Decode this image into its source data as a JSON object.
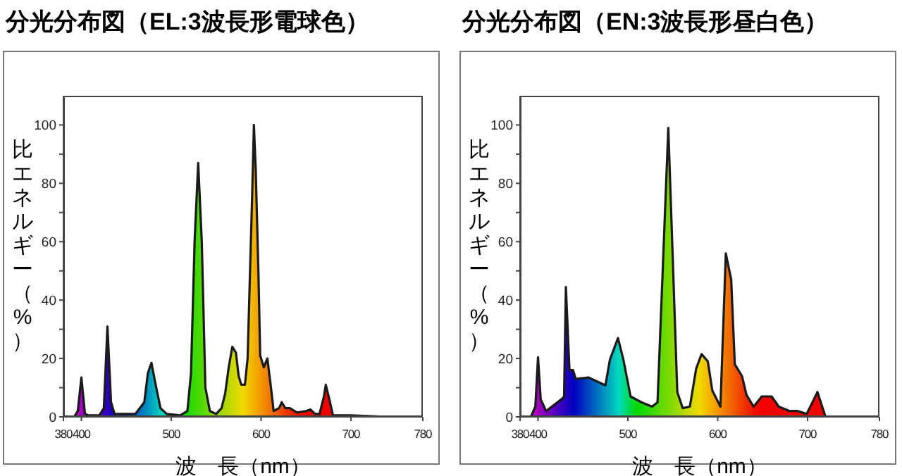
{
  "chart_data": [
    {
      "type": "area",
      "title": "分光分布図（EL:3波長形電球色）",
      "xlabel": "波　長（nm）",
      "ylabel": "比エネルギー（%）",
      "xlim": [
        380,
        780
      ],
      "xticks": [
        380,
        400,
        500,
        600,
        700,
        780
      ],
      "ylim": [
        0,
        110
      ],
      "yticks": [
        0,
        {
          "value": 10,
          "label": null
        },
        20,
        {
          "value": 30,
          "label": null
        },
        40,
        {
          "value": 50,
          "label": null
        },
        60,
        {
          "value": 70,
          "label": null
        },
        80,
        {
          "value": 90,
          "label": null
        },
        100
      ],
      "series": [
        {
          "color": "#1a1a1a",
          "x": [
            380,
            392,
            396,
            400,
            404,
            408,
            420,
            425,
            429,
            433,
            437,
            445,
            460,
            470,
            474,
            478,
            482,
            488,
            495,
            510,
            518,
            522,
            526,
            530,
            534,
            538,
            543,
            550,
            556,
            560,
            564,
            568,
            572,
            575,
            578,
            582,
            585,
            590,
            592,
            594,
            597,
            599,
            603,
            607,
            611,
            614,
            620,
            623,
            627,
            632,
            640,
            650,
            655,
            660,
            665,
            670,
            672,
            676,
            680,
            700,
            720,
            740,
            780
          ],
          "values": [
            0,
            0,
            2,
            13.5,
            1,
            0.5,
            0.5,
            3,
            31,
            5,
            1,
            1,
            1,
            5,
            15,
            18.5,
            12,
            3,
            1,
            0.5,
            2,
            15,
            60,
            87,
            60,
            10,
            2,
            1,
            3,
            8,
            17,
            24,
            22,
            14,
            11,
            11,
            20,
            75,
            100,
            85,
            50,
            21,
            17,
            20,
            10,
            2,
            3,
            5,
            3,
            3,
            1.5,
            2,
            2.5,
            1,
            1,
            7,
            11,
            6,
            0.5,
            0.5,
            0.3,
            0,
            0
          ]
        }
      ]
    },
    {
      "type": "area",
      "title": "分光分布図（EN:3波長形昼白色）",
      "xlabel": "波　長（nm）",
      "ylabel": "比エネルギー（%）",
      "xlim": [
        380,
        780
      ],
      "xticks": [
        380,
        400,
        500,
        600,
        700,
        780
      ],
      "ylim": [
        0,
        110
      ],
      "yticks": [
        0,
        {
          "value": 10,
          "label": null
        },
        20,
        {
          "value": 30,
          "label": null
        },
        40,
        {
          "value": 50,
          "label": null
        },
        60,
        {
          "value": 70,
          "label": null
        },
        80,
        {
          "value": 90,
          "label": null
        },
        100
      ],
      "series": [
        {
          "color": "#1a1a1a",
          "x": [
            380,
            392,
            397,
            400,
            403,
            409,
            426,
            429,
            431,
            435,
            439,
            442,
            456,
            475,
            480,
            489,
            495,
            503,
            515,
            527,
            533,
            545,
            555,
            561,
            569,
            576,
            582,
            589,
            594,
            603,
            609,
            615,
            619,
            627,
            632,
            640,
            649,
            660,
            668,
            680,
            689,
            699,
            711,
            720,
            780
          ],
          "values": [
            0,
            0,
            3.5,
            20.4,
            6,
            2,
            6,
            7,
            44.5,
            16,
            16,
            13,
            13.5,
            10.8,
            19.6,
            27,
            19.6,
            7,
            5,
            3.5,
            5,
            99,
            8.5,
            3,
            3.5,
            16.5,
            21.5,
            19,
            9,
            3.5,
            56,
            47,
            18,
            14,
            7.5,
            3.5,
            7,
            7,
            3.5,
            2,
            2,
            1,
            8.5,
            0,
            0
          ]
        }
      ]
    }
  ]
}
